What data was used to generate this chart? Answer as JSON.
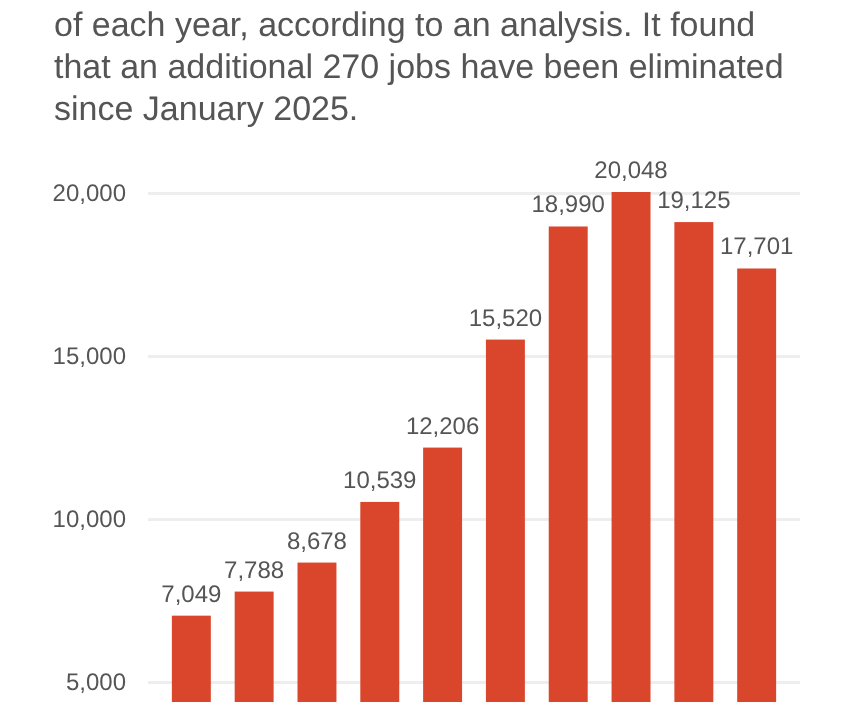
{
  "chart_data": {
    "type": "bar",
    "subtitle": "of each year, according to an analysis. It found that an additional 270 jobs have been eliminated since January 2025.",
    "categories": [
      null,
      null,
      null,
      null,
      null,
      null,
      null,
      null,
      null,
      null
    ],
    "values": [
      7049,
      7788,
      8678,
      10539,
      12206,
      15520,
      18990,
      20048,
      19125,
      17701
    ],
    "value_labels": [
      "7,049",
      "7,788",
      "8,678",
      "10,539",
      "12,206",
      "15,520",
      "18,990",
      "20,048",
      "19,125",
      "17,701"
    ],
    "color": "#d9462c",
    "ylim": [
      4400,
      20048
    ],
    "yticks": [
      {
        "value": 5000,
        "label": "5,000"
      },
      {
        "value": 10000,
        "label": "10,000"
      },
      {
        "value": 15000,
        "label": "15,000"
      },
      {
        "value": 20000,
        "label": "20,000"
      }
    ],
    "grid": "y"
  }
}
